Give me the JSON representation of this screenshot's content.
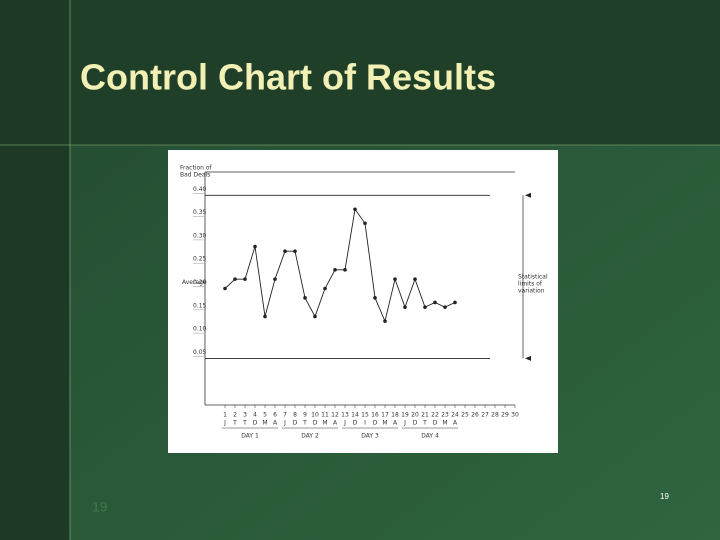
{
  "slide": {
    "title": "Control Chart of Results",
    "page_number_left": "19",
    "page_number_right": "19"
  },
  "chart_data": {
    "type": "line",
    "ylabel": [
      "Fraction of",
      "Bad Deals"
    ],
    "categories": [
      "1",
      "2",
      "3",
      "4",
      "5",
      "6",
      "7",
      "8",
      "9",
      "10",
      "11",
      "12",
      "13",
      "14",
      "15",
      "16",
      "17",
      "18",
      "19",
      "20",
      "21",
      "22",
      "23",
      "24",
      "25",
      "26",
      "27",
      "28",
      "29",
      "30"
    ],
    "day_letters": [
      "J",
      "T",
      "T",
      "D",
      "M",
      "A",
      "J",
      "D",
      "T",
      "D",
      "M",
      "A",
      "J",
      "D",
      "I",
      "D",
      "M",
      "A",
      "J",
      "D",
      "T",
      "D",
      "M",
      "A"
    ],
    "day_groups": [
      {
        "label": "DAY 1",
        "from": 1,
        "to": 6
      },
      {
        "label": "DAY 2",
        "from": 7,
        "to": 12
      },
      {
        "label": "DAY 3",
        "from": 13,
        "to": 18
      },
      {
        "label": "DAY 4",
        "from": 19,
        "to": 24
      }
    ],
    "series": [
      {
        "color": "#222222",
        "values": [
          0.2,
          0.22,
          0.22,
          0.29,
          0.14,
          0.22,
          0.28,
          0.28,
          0.18,
          0.14,
          0.2,
          0.24,
          0.24,
          0.37,
          0.34,
          0.18,
          0.13,
          0.22,
          0.16,
          0.22,
          0.16,
          0.17,
          0.16,
          0.17,
          null,
          null,
          null,
          null,
          null,
          null
        ]
      }
    ],
    "control_limits": [
      0.4,
      0.05
    ],
    "average_label": "Average",
    "limits_annotation": [
      "Statistical",
      "limits of",
      "variation"
    ],
    "ylim": [
      -0.05,
      0.45
    ],
    "yticks": [
      {
        "value": 0.4,
        "label": "0.40"
      },
      0.35,
      {
        "value": 0.3,
        "label": "0.30"
      },
      0.25,
      {
        "value": 0.2,
        "label": "0.20"
      },
      0.15,
      {
        "value": 0.1,
        "label": "0.10"
      },
      0.05
    ]
  }
}
